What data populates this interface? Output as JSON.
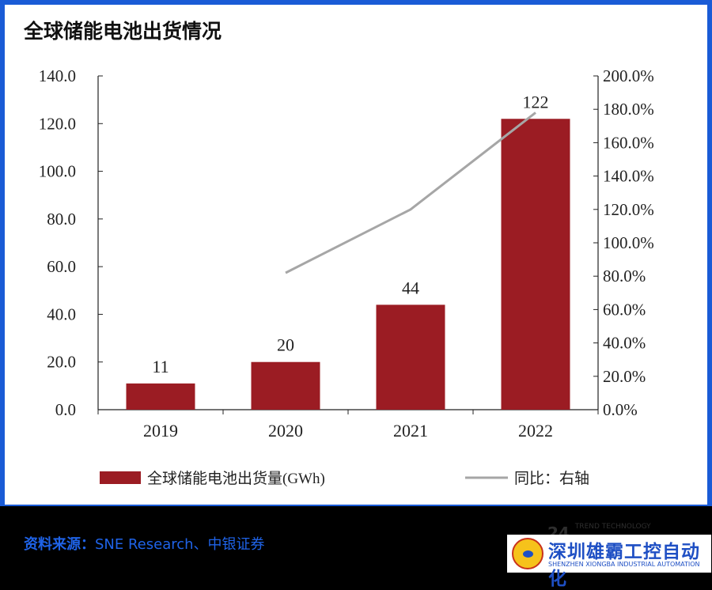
{
  "title": "全球储能电池出货情况",
  "chart_data": {
    "type": "bar",
    "categories": [
      "2019",
      "2020",
      "2021",
      "2022"
    ],
    "series": [
      {
        "name": "全球储能电池出货量(GWh)",
        "type": "bar",
        "axis": "left",
        "values": [
          11,
          20,
          44,
          122
        ],
        "labels": [
          "11",
          "20",
          "44",
          "122"
        ]
      },
      {
        "name": "同比：右轴",
        "type": "line",
        "axis": "right",
        "values": [
          null,
          82,
          120,
          178
        ]
      }
    ],
    "y_left": {
      "min": 0,
      "max": 140,
      "ticks": [
        "0.0",
        "20.0",
        "40.0",
        "60.0",
        "80.0",
        "100.0",
        "120.0",
        "140.0"
      ]
    },
    "y_right": {
      "min": 0,
      "max": 200,
      "ticks": [
        "0.0%",
        "20.0%",
        "40.0%",
        "60.0%",
        "80.0%",
        "100.0%",
        "120.0%",
        "140.0%",
        "160.0%",
        "180.0%",
        "200.0%"
      ]
    },
    "legend": "bottom",
    "colors": {
      "bar": "#9b1c23",
      "line": "#a6a6a6"
    }
  },
  "source": {
    "label": "资料来源：",
    "text": "SNE Research、中银证券"
  },
  "watermark": {
    "text": "24",
    "sub": "TREND TECHNOLOGY"
  },
  "company": {
    "name": "深圳雄霸工控自动化",
    "english": "SHENZHEN XIONGBA INDUSTRIAL AUTOMATION"
  }
}
